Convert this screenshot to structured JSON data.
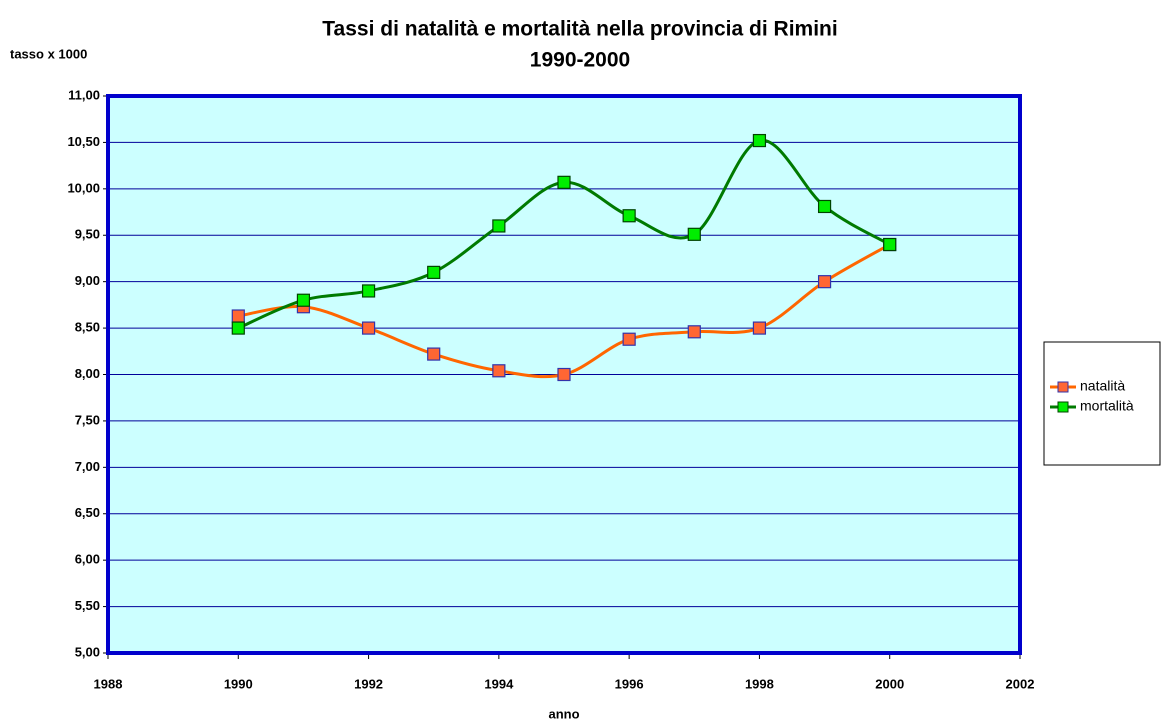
{
  "chart_data": {
    "type": "line",
    "title": [
      "Tassi di natalità e mortalità nella provincia di Rimini",
      "1990-2000"
    ],
    "y_label": "tasso x 1000",
    "x_label": "anno",
    "x": [
      1990,
      1991,
      1992,
      1993,
      1994,
      1995,
      1996,
      1997,
      1998,
      1999,
      2000
    ],
    "series": [
      {
        "name": "natalità",
        "color": "#ff6600",
        "marker_color": "#ff6633",
        "values": [
          8.63,
          8.73,
          8.5,
          8.22,
          8.04,
          8.0,
          8.38,
          8.46,
          8.5,
          9.0,
          9.4
        ]
      },
      {
        "name": "mortalità",
        "color": "#007a00",
        "marker_color": "#00ee00",
        "values": [
          8.5,
          8.8,
          8.9,
          9.1,
          9.6,
          10.07,
          9.71,
          9.51,
          10.52,
          9.81,
          9.4
        ]
      }
    ],
    "xlim": [
      1988,
      2002
    ],
    "xticks": [
      1988,
      1990,
      1992,
      1994,
      1996,
      1998,
      2000,
      2002
    ],
    "ylim": [
      5,
      11
    ],
    "yticks": [
      {
        "value": 5,
        "label": "5,00"
      },
      {
        "value": 5.5,
        "label": "5,50"
      },
      {
        "value": 6,
        "label": "6,00"
      },
      {
        "value": 6.5,
        "label": "6,50"
      },
      {
        "value": 7,
        "label": "7,00"
      },
      {
        "value": 7.5,
        "label": "7,50"
      },
      {
        "value": 8,
        "label": "8,00"
      },
      {
        "value": 8.5,
        "label": "8,50"
      },
      {
        "value": 9,
        "label": "9,00"
      },
      {
        "value": 9.5,
        "label": "9,50"
      },
      {
        "value": 10,
        "label": "10,00"
      },
      {
        "value": 10.5,
        "label": "10,50"
      },
      {
        "value": 11,
        "label": "11,00"
      }
    ],
    "grid": true,
    "smooth": true,
    "legend": "right"
  }
}
